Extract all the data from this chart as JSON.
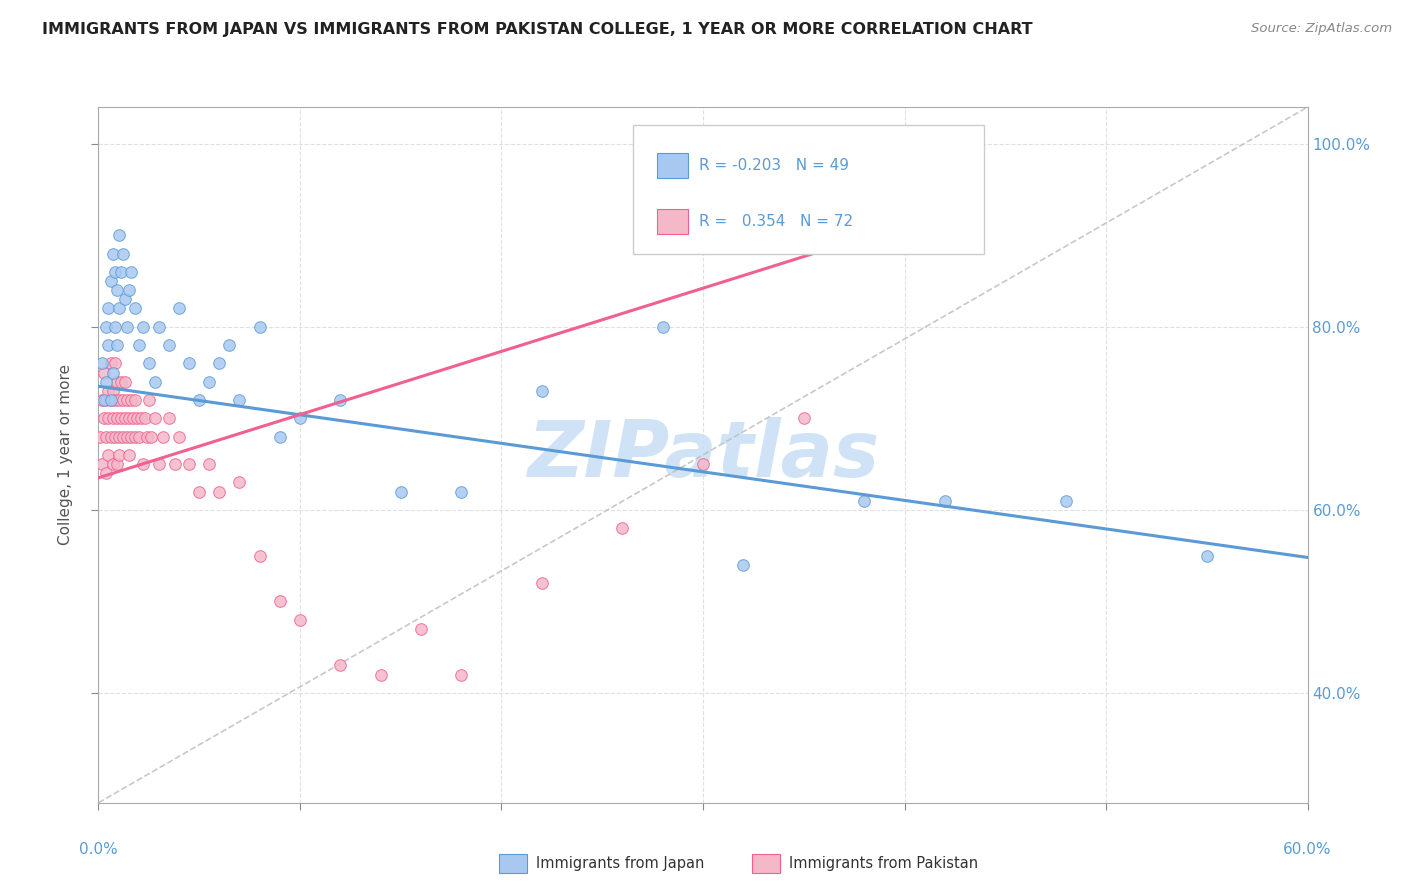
{
  "title": "IMMIGRANTS FROM JAPAN VS IMMIGRANTS FROM PAKISTAN COLLEGE, 1 YEAR OR MORE CORRELATION CHART",
  "source": "Source: ZipAtlas.com",
  "ylabel": "College, 1 year or more",
  "legend_japan": "Immigrants from Japan",
  "legend_pakistan": "Immigrants from Pakistan",
  "R_japan": "-0.203",
  "N_japan": "49",
  "R_pakistan": "0.354",
  "N_pakistan": "72",
  "color_japan": "#a8c8f0",
  "color_pakistan": "#f4b8c8",
  "color_japan_line": "#5b9bd5",
  "color_pakistan_line": "#f06090",
  "color_dashed": "#bbbbbb",
  "japan_scatter_x": [
    0.002,
    0.003,
    0.004,
    0.004,
    0.005,
    0.005,
    0.006,
    0.006,
    0.007,
    0.007,
    0.008,
    0.008,
    0.009,
    0.009,
    0.01,
    0.01,
    0.011,
    0.012,
    0.013,
    0.014,
    0.015,
    0.016,
    0.018,
    0.02,
    0.022,
    0.025,
    0.028,
    0.03,
    0.035,
    0.04,
    0.045,
    0.05,
    0.055,
    0.06,
    0.065,
    0.07,
    0.08,
    0.09,
    0.1,
    0.12,
    0.15,
    0.18,
    0.22,
    0.28,
    0.32,
    0.38,
    0.42,
    0.48,
    0.55
  ],
  "japan_scatter_y": [
    0.76,
    0.72,
    0.8,
    0.74,
    0.78,
    0.82,
    0.72,
    0.85,
    0.75,
    0.88,
    0.8,
    0.86,
    0.78,
    0.84,
    0.82,
    0.9,
    0.86,
    0.88,
    0.83,
    0.8,
    0.84,
    0.86,
    0.82,
    0.78,
    0.8,
    0.76,
    0.74,
    0.8,
    0.78,
    0.82,
    0.76,
    0.72,
    0.74,
    0.76,
    0.78,
    0.72,
    0.8,
    0.68,
    0.7,
    0.72,
    0.62,
    0.62,
    0.73,
    0.8,
    0.54,
    0.61,
    0.61,
    0.61,
    0.55
  ],
  "pakistan_scatter_x": [
    0.001,
    0.002,
    0.002,
    0.003,
    0.003,
    0.004,
    0.004,
    0.004,
    0.005,
    0.005,
    0.005,
    0.006,
    0.006,
    0.006,
    0.007,
    0.007,
    0.007,
    0.008,
    0.008,
    0.008,
    0.009,
    0.009,
    0.009,
    0.01,
    0.01,
    0.01,
    0.011,
    0.011,
    0.012,
    0.012,
    0.013,
    0.013,
    0.014,
    0.014,
    0.015,
    0.015,
    0.016,
    0.016,
    0.017,
    0.018,
    0.018,
    0.019,
    0.02,
    0.021,
    0.022,
    0.023,
    0.024,
    0.025,
    0.026,
    0.028,
    0.03,
    0.032,
    0.035,
    0.038,
    0.04,
    0.045,
    0.05,
    0.055,
    0.06,
    0.07,
    0.08,
    0.09,
    0.1,
    0.12,
    0.14,
    0.16,
    0.18,
    0.22,
    0.26,
    0.3,
    0.35,
    0.4
  ],
  "pakistan_scatter_y": [
    0.68,
    0.72,
    0.65,
    0.7,
    0.75,
    0.68,
    0.72,
    0.64,
    0.7,
    0.66,
    0.73,
    0.68,
    0.72,
    0.76,
    0.65,
    0.7,
    0.73,
    0.68,
    0.72,
    0.76,
    0.65,
    0.7,
    0.74,
    0.68,
    0.72,
    0.66,
    0.7,
    0.74,
    0.68,
    0.72,
    0.7,
    0.74,
    0.68,
    0.72,
    0.66,
    0.7,
    0.68,
    0.72,
    0.7,
    0.68,
    0.72,
    0.7,
    0.68,
    0.7,
    0.65,
    0.7,
    0.68,
    0.72,
    0.68,
    0.7,
    0.65,
    0.68,
    0.7,
    0.65,
    0.68,
    0.65,
    0.62,
    0.65,
    0.62,
    0.63,
    0.55,
    0.5,
    0.48,
    0.43,
    0.42,
    0.47,
    0.42,
    0.52,
    0.58,
    0.65,
    0.7,
    0.92
  ],
  "xmin": 0.0,
  "xmax": 0.6,
  "ymin": 0.28,
  "ymax": 1.04,
  "japan_line_x0": 0.0,
  "japan_line_y0": 0.735,
  "japan_line_x1": 0.6,
  "japan_line_y1": 0.548,
  "pakistan_line_x0": 0.0,
  "pakistan_line_y0": 0.635,
  "pakistan_line_x1": 0.42,
  "pakistan_line_y1": 0.925,
  "background_color": "#ffffff",
  "grid_color": "#dddddd",
  "watermark_text": "ZIPatlas",
  "watermark_color": "#c8dff5"
}
